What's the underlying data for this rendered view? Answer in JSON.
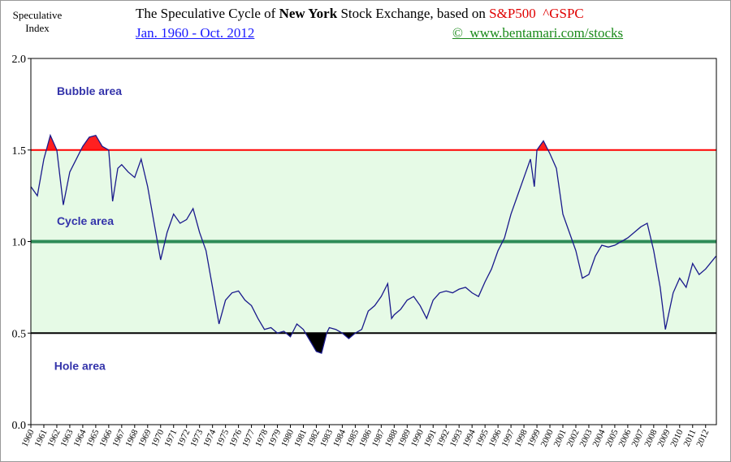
{
  "header": {
    "y_label": "Speculative Index",
    "title_parts": [
      "The Speculative Cycle of ",
      "New York",
      " Stock Exchange, based on ",
      "S&P500  ^GSPC"
    ],
    "subtitle": "Jan. 1960 - Oct. 2012",
    "credit": "©  www.bentamari.com/stocks"
  },
  "chart_data": {
    "type": "line",
    "series": [
      {
        "name": "Speculative Index",
        "color": "#1a1a8c",
        "x": [
          1960.0,
          1960.5,
          1961.0,
          1961.5,
          1962.0,
          1962.5,
          1963.0,
          1963.5,
          1964.0,
          1964.5,
          1965.0,
          1965.5,
          1966.0,
          1966.3,
          1966.7,
          1967.0,
          1967.5,
          1968.0,
          1968.5,
          1969.0,
          1969.5,
          1970.0,
          1970.5,
          1971.0,
          1971.5,
          1972.0,
          1972.5,
          1973.0,
          1973.5,
          1974.0,
          1974.5,
          1975.0,
          1975.5,
          1976.0,
          1976.5,
          1977.0,
          1977.5,
          1978.0,
          1978.5,
          1979.0,
          1979.5,
          1980.0,
          1980.5,
          1981.0,
          1981.5,
          1982.0,
          1982.4,
          1982.8,
          1983.0,
          1983.5,
          1984.0,
          1984.5,
          1985.0,
          1985.5,
          1986.0,
          1986.5,
          1987.0,
          1987.5,
          1987.8,
          1988.0,
          1988.5,
          1989.0,
          1989.5,
          1990.0,
          1990.5,
          1991.0,
          1991.5,
          1992.0,
          1992.5,
          1993.0,
          1993.5,
          1994.0,
          1994.5,
          1995.0,
          1995.5,
          1996.0,
          1996.5,
          1997.0,
          1997.5,
          1998.0,
          1998.5,
          1998.8,
          1999.0,
          1999.5,
          2000.0,
          2000.5,
          2001.0,
          2001.5,
          2002.0,
          2002.5,
          2003.0,
          2003.5,
          2004.0,
          2004.5,
          2005.0,
          2005.5,
          2006.0,
          2006.5,
          2007.0,
          2007.5,
          2008.0,
          2008.5,
          2008.9,
          2009.5,
          2010.0,
          2010.5,
          2011.0,
          2011.5,
          2012.0,
          2012.8
        ],
        "values": [
          1.3,
          1.25,
          1.45,
          1.58,
          1.5,
          1.2,
          1.38,
          1.45,
          1.52,
          1.57,
          1.58,
          1.52,
          1.5,
          1.22,
          1.4,
          1.42,
          1.38,
          1.35,
          1.45,
          1.3,
          1.1,
          0.9,
          1.05,
          1.15,
          1.1,
          1.12,
          1.18,
          1.05,
          0.95,
          0.75,
          0.55,
          0.68,
          0.72,
          0.73,
          0.68,
          0.65,
          0.58,
          0.52,
          0.53,
          0.5,
          0.51,
          0.48,
          0.55,
          0.52,
          0.46,
          0.4,
          0.39,
          0.5,
          0.53,
          0.52,
          0.5,
          0.47,
          0.5,
          0.52,
          0.62,
          0.65,
          0.7,
          0.77,
          0.58,
          0.6,
          0.63,
          0.68,
          0.7,
          0.65,
          0.58,
          0.68,
          0.72,
          0.73,
          0.72,
          0.74,
          0.75,
          0.72,
          0.7,
          0.78,
          0.85,
          0.95,
          1.02,
          1.15,
          1.25,
          1.35,
          1.45,
          1.3,
          1.5,
          1.55,
          1.48,
          1.4,
          1.15,
          1.05,
          0.95,
          0.8,
          0.82,
          0.92,
          0.98,
          0.97,
          0.98,
          1.0,
          1.02,
          1.05,
          1.08,
          1.1,
          0.95,
          0.75,
          0.52,
          0.72,
          0.8,
          0.75,
          0.88,
          0.82,
          0.85,
          0.92
        ]
      }
    ],
    "xlim": [
      1960,
      2012.83
    ],
    "xticks": [
      1960,
      1961,
      1962,
      1963,
      1964,
      1965,
      1966,
      1967,
      1968,
      1969,
      1970,
      1971,
      1972,
      1973,
      1974,
      1975,
      1976,
      1977,
      1978,
      1979,
      1980,
      1981,
      1982,
      1983,
      1984,
      1985,
      1986,
      1987,
      1988,
      1989,
      1990,
      1991,
      1992,
      1993,
      1994,
      1995,
      1996,
      1997,
      1998,
      1999,
      2000,
      2001,
      2002,
      2003,
      2004,
      2005,
      2006,
      2007,
      2008,
      2009,
      2010,
      2011,
      2012
    ],
    "ylim": [
      0,
      2
    ],
    "yticks": [
      {
        "value": 0,
        "label": "0.0"
      },
      {
        "value": 0.5,
        "label": "0.5"
      },
      {
        "value": 1,
        "label": "1.0"
      },
      {
        "value": 1.5,
        "label": "1.5"
      },
      {
        "value": 2,
        "label": "2.0"
      }
    ],
    "reference_lines": [
      {
        "value": 1.5,
        "color": "#ff0000",
        "fill": "#ff2020"
      },
      {
        "value": 1,
        "color": "#2e8b57"
      },
      {
        "value": 0.5,
        "color": "#000000",
        "fill": "#000000"
      }
    ],
    "band": {
      "from": 0.5,
      "to": 1.5,
      "color": "#e6fae6"
    },
    "annotations": [
      {
        "text": "Bubble area",
        "x": 1962,
        "y": 1.8
      },
      {
        "text": "Cycle area",
        "x": 1962,
        "y": 1.09
      },
      {
        "text": "Hole area",
        "x": 1961.8,
        "y": 0.3
      }
    ]
  }
}
